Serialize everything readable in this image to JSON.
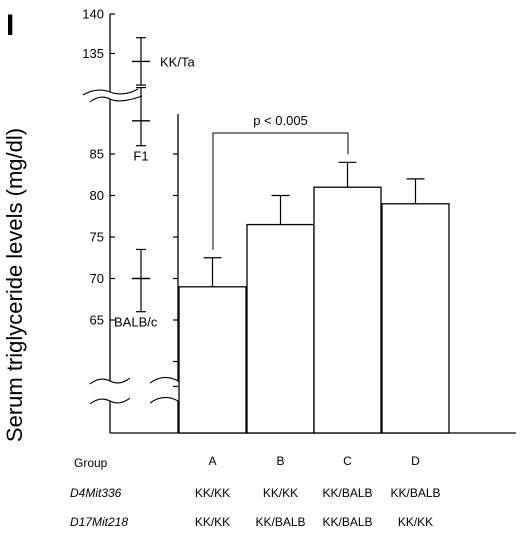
{
  "panel_label": "I",
  "chart_data": {
    "type": "bar",
    "ylabel": "Serum triglyceride levels (mg/dl)",
    "categories": [
      "A",
      "B",
      "C",
      "D"
    ],
    "values": [
      69,
      76.5,
      81,
      79
    ],
    "errors": [
      3.5,
      3.5,
      3,
      3
    ],
    "ylim_lower": [
      60,
      88
    ],
    "ylim_upper": [
      130,
      140
    ],
    "lower_ticks": [
      "65",
      "70",
      "75",
      "80",
      "85"
    ],
    "upper_ticks": [
      "135",
      "140"
    ],
    "axis_break": true,
    "reference_strains": [
      {
        "label": "KK/Ta",
        "mean": 134,
        "low": 131,
        "high": 137,
        "axis": "upper"
      },
      {
        "label": "F1",
        "mean": 89,
        "low": 86,
        "high": 93,
        "axis": "lower"
      },
      {
        "label": "BALB/c",
        "mean": 70,
        "low": 66,
        "high": 73.5,
        "axis": "lower"
      }
    ],
    "annotation": {
      "text": "p < 0.005",
      "from": "A",
      "to": "C"
    }
  },
  "table": {
    "group_label": "Group",
    "rows": [
      {
        "label": "D4Mit336",
        "values": [
          "KK/KK",
          "KK/KK",
          "KK/BALB",
          "KK/BALB"
        ]
      },
      {
        "label": "D17Mit218",
        "values": [
          "KK/KK",
          "KK/BALB",
          "KK/BALB",
          "KK/KK"
        ]
      }
    ]
  }
}
